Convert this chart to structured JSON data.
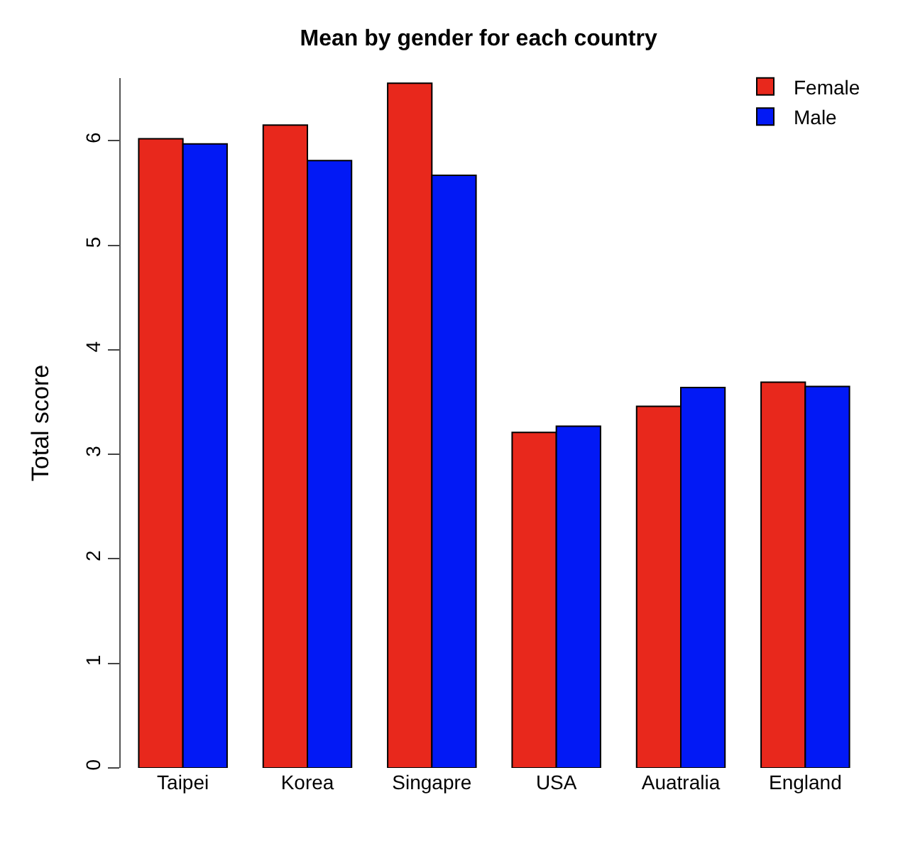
{
  "chart_data": {
    "type": "bar",
    "title": "Mean by gender for each country",
    "ylabel": "Total score",
    "categories": [
      "Taipei",
      "Korea",
      "Singapre",
      "USA",
      "Auatralia",
      "England"
    ],
    "series": [
      {
        "name": "Female",
        "color": "#e8281c",
        "values": [
          6.02,
          6.15,
          6.55,
          3.21,
          3.46,
          3.69
        ]
      },
      {
        "name": "Male",
        "color": "#0219f5",
        "values": [
          5.97,
          5.81,
          5.67,
          3.27,
          3.64,
          3.65
        ]
      }
    ],
    "ylim": [
      0,
      6.6
    ],
    "yticks": [
      0,
      1,
      2,
      3,
      4,
      5,
      6
    ],
    "legend": "top right"
  }
}
